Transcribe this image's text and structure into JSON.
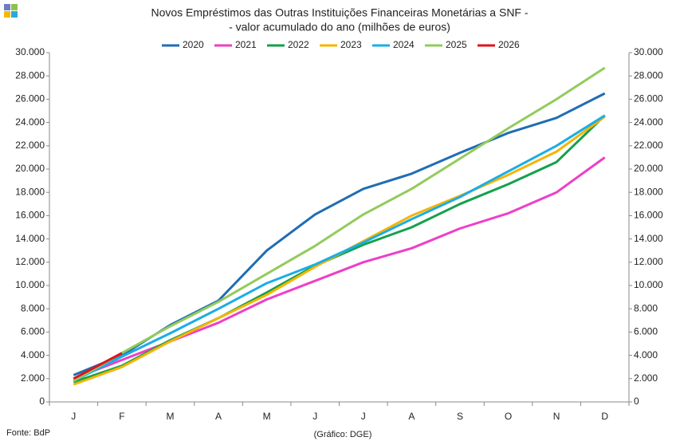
{
  "chart_data": {
    "type": "line",
    "title": "Novos Empréstimos das Outras Instituições Financeiras Monetárias a SNF -",
    "subtitle": "- valor acumulado do ano (milhões de euros)",
    "source": "Fonte: BdP",
    "credit": "(Gráfico: DGE)",
    "categories": [
      "J",
      "F",
      "M",
      "A",
      "M",
      "J",
      "J",
      "A",
      "S",
      "O",
      "N",
      "D"
    ],
    "series": [
      {
        "name": "2020",
        "color": "#1f6db3",
        "values": [
          2300,
          4000,
          6600,
          8700,
          13000,
          16100,
          18300,
          19600,
          21400,
          23100,
          24400,
          26500
        ]
      },
      {
        "name": "2021",
        "color": "#ee3fc6",
        "values": [
          2000,
          3600,
          5200,
          6800,
          8800,
          10400,
          12000,
          13200,
          14900,
          16200,
          18000,
          21000
        ]
      },
      {
        "name": "2022",
        "color": "#14a14b",
        "values": [
          1700,
          3100,
          5300,
          7200,
          9400,
          11700,
          13500,
          15000,
          17000,
          18700,
          20600,
          24600
        ]
      },
      {
        "name": "2023",
        "color": "#f6b400",
        "values": [
          1500,
          3000,
          5200,
          7200,
          9200,
          11600,
          13800,
          16000,
          17700,
          19500,
          21500,
          24500
        ]
      },
      {
        "name": "2024",
        "color": "#1badE6",
        "values": [
          1800,
          3900,
          5900,
          8000,
          10200,
          11800,
          13700,
          15700,
          17600,
          19800,
          22000,
          24600
        ]
      },
      {
        "name": "2025",
        "color": "#93cb5b",
        "values": [
          1800,
          4200,
          6500,
          8600,
          11000,
          13400,
          16100,
          18300,
          20900,
          23500,
          26000,
          28700
        ]
      },
      {
        "name": "2026",
        "color": "#e0121c",
        "values": [
          2000,
          4200,
          null,
          null,
          null,
          null,
          null,
          null,
          null,
          null,
          null,
          null
        ]
      }
    ],
    "ylim": [
      0,
      30000
    ],
    "yticks": [
      0,
      {
        "value": 2000,
        "label": "2.000"
      },
      {
        "value": 4000,
        "label": "4.000"
      },
      {
        "value": 6000,
        "label": "6.000"
      },
      {
        "value": 8000,
        "label": "8.000"
      },
      {
        "value": 10000,
        "label": "10.000"
      },
      {
        "value": 12000,
        "label": "12.000"
      },
      {
        "value": 14000,
        "label": "14.000"
      },
      {
        "value": 16000,
        "label": "16.000"
      },
      {
        "value": 18000,
        "label": "18.000"
      },
      {
        "value": 20000,
        "label": "20.000"
      },
      {
        "value": 22000,
        "label": "22.000"
      },
      {
        "value": 24000,
        "label": "24.000"
      },
      {
        "value": 26000,
        "label": "26.000"
      },
      {
        "value": 28000,
        "label": "28.000"
      },
      {
        "value": 30000,
        "label": "30.000"
      }
    ],
    "y2lim": [
      0,
      30000
    ],
    "y2ticks": [
      0,
      {
        "value": 2000,
        "label": "2.000"
      },
      {
        "value": 4000,
        "label": "4.000"
      },
      {
        "value": 6000,
        "label": "6.000"
      },
      {
        "value": 8000,
        "label": "8.000"
      },
      {
        "value": 10000,
        "label": "10.000"
      },
      {
        "value": 12000,
        "label": "12.000"
      },
      {
        "value": 14000,
        "label": "14.000"
      },
      {
        "value": 16000,
        "label": "16.000"
      },
      {
        "value": 18000,
        "label": "18.000"
      },
      {
        "value": 20000,
        "label": "20.000"
      },
      {
        "value": 22000,
        "label": "22.000"
      },
      {
        "value": 24000,
        "label": "24.000"
      },
      {
        "value": 26000,
        "label": "26.000"
      },
      {
        "value": 28000,
        "label": "28.000"
      },
      {
        "value": 30000,
        "label": "30.000"
      }
    ],
    "legend": "top",
    "grid": false
  }
}
